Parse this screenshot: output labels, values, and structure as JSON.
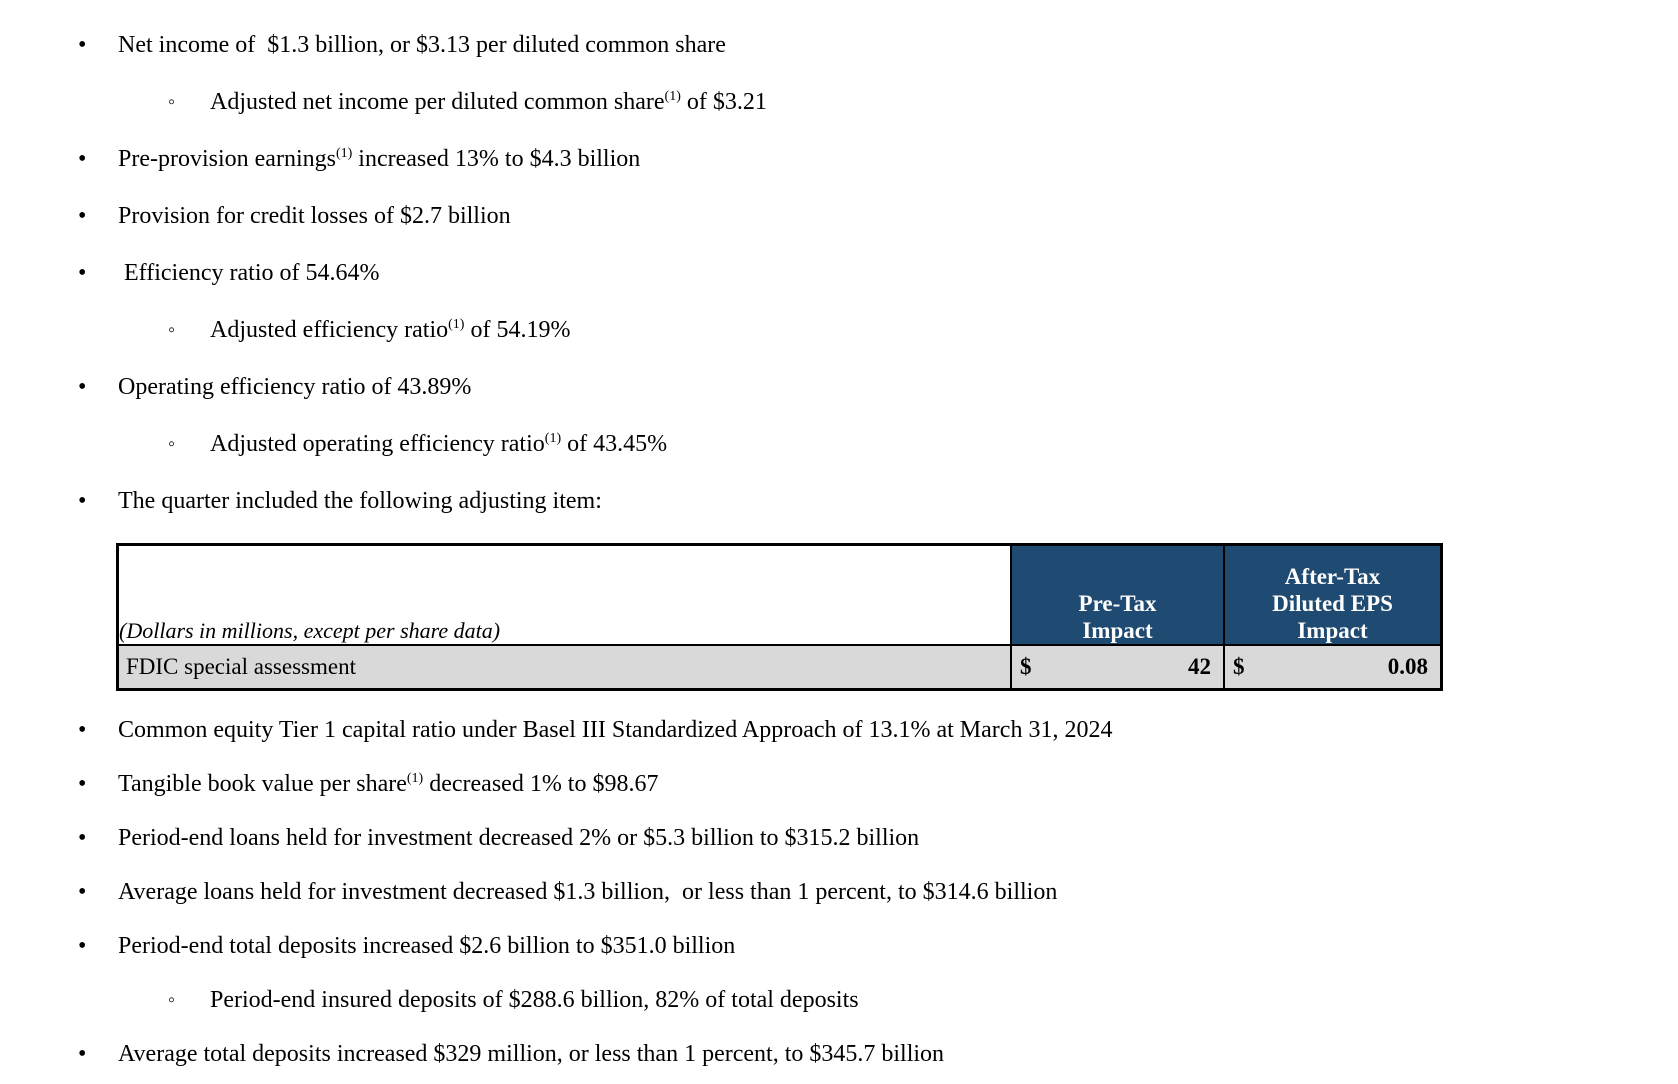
{
  "document": {
    "type": "earnings-highlights",
    "bullets_before_table": [
      {
        "level": 1,
        "segments": [
          {
            "text": "Net income of  $1.3 billion, or $3.13 per diluted common share"
          }
        ]
      },
      {
        "level": 2,
        "segments": [
          {
            "text": "Adjusted net income per diluted common share"
          },
          {
            "text": "(1)",
            "sup": true
          },
          {
            "text": " of $3.21"
          }
        ]
      },
      {
        "level": 1,
        "segments": [
          {
            "text": "Pre-provision earnings"
          },
          {
            "text": "(1)",
            "sup": true
          },
          {
            "text": " increased 13% to $4.3 billion"
          }
        ]
      },
      {
        "level": 1,
        "segments": [
          {
            "text": "Provision for credit losses of $2.7 billion"
          }
        ]
      },
      {
        "level": 1,
        "segments": [
          {
            "text": " Efficiency ratio of 54.64%"
          }
        ]
      },
      {
        "level": 2,
        "segments": [
          {
            "text": "Adjusted efficiency ratio"
          },
          {
            "text": "(1)",
            "sup": true
          },
          {
            "text": " of 54.19%"
          }
        ]
      },
      {
        "level": 1,
        "segments": [
          {
            "text": "Operating efficiency ratio of 43.89%"
          }
        ]
      },
      {
        "level": 2,
        "segments": [
          {
            "text": "Adjusted operating efficiency ratio"
          },
          {
            "text": "(1)",
            "sup": true
          },
          {
            "text": " of 43.45%"
          }
        ]
      },
      {
        "level": 1,
        "segments": [
          {
            "text": "The quarter included the following adjusting item:"
          }
        ]
      }
    ],
    "table": {
      "note": "(Dollars in millions, except per share data)",
      "pre_tax_header": "Pre-Tax\nImpact",
      "after_tax_header": "After-Tax\nDiluted EPS\nImpact",
      "row": {
        "label": "FDIC special assessment",
        "pre_tax_currency": "$",
        "pre_tax_value": "42",
        "after_tax_currency": "$",
        "after_tax_value": "0.08"
      },
      "colors": {
        "header_bg": "#1F4A72",
        "header_text": "#FFFFFF",
        "row_bg": "#D9D9D9",
        "border": "#000000"
      }
    },
    "bullets_after_table": [
      {
        "level": 1,
        "segments": [
          {
            "text": "Common equity Tier 1 capital ratio under Basel III Standardized Approach of 13.1% at March 31, 2024"
          }
        ]
      },
      {
        "level": 1,
        "segments": [
          {
            "text": "Tangible book value per share"
          },
          {
            "text": "(1)",
            "sup": true
          },
          {
            "text": " decreased 1% to $98.67"
          }
        ]
      },
      {
        "level": 1,
        "segments": [
          {
            "text": "Period-end loans held for investment decreased 2% or $5.3 billion to $315.2 billion"
          }
        ]
      },
      {
        "level": 1,
        "segments": [
          {
            "text": "Average loans held for investment decreased $1.3 billion,  or less than 1 percent, to $314.6 billion"
          }
        ]
      },
      {
        "level": 1,
        "segments": [
          {
            "text": "Period-end total deposits increased $2.6 billion to $351.0 billion"
          }
        ]
      },
      {
        "level": 2,
        "segments": [
          {
            "text": "Period-end insured deposits of $288.6 billion, 82% of total deposits"
          }
        ]
      },
      {
        "level": 1,
        "segments": [
          {
            "text": "Average total deposits increased $329 million, or less than 1 percent, to $345.7 billion"
          }
        ]
      }
    ]
  }
}
